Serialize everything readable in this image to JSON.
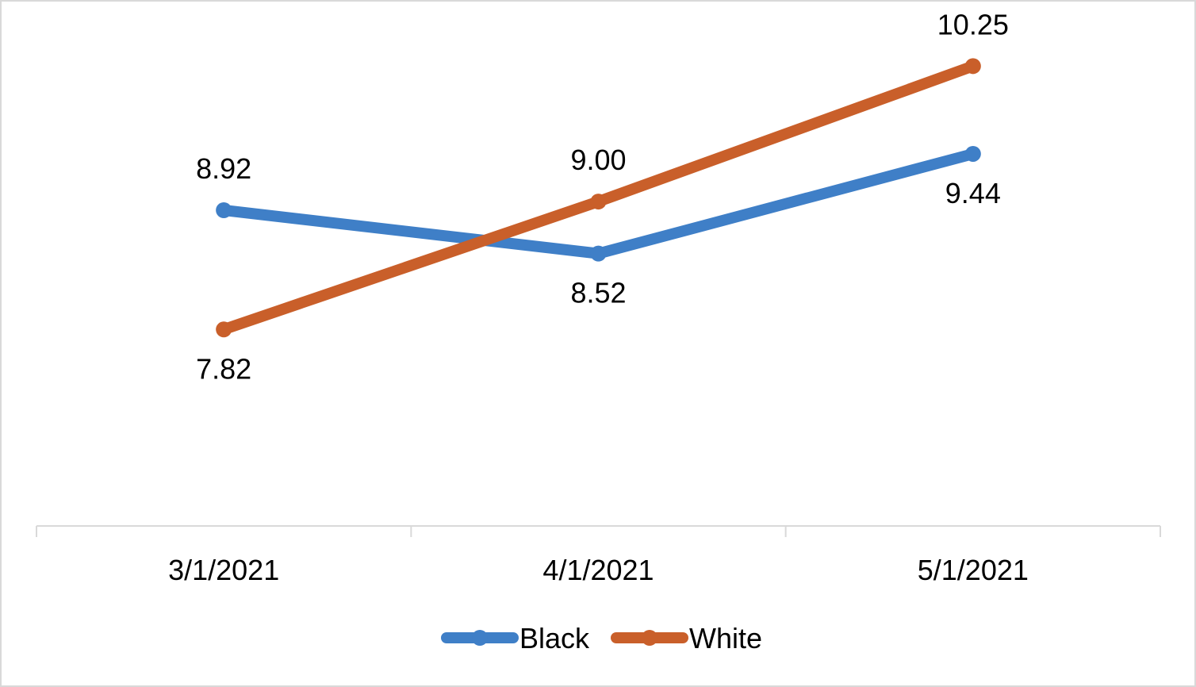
{
  "chart_data": {
    "type": "line",
    "categories": [
      "3/1/2021",
      "4/1/2021",
      "5/1/2021"
    ],
    "series": [
      {
        "name": "Black",
        "values": [
          8.92,
          8.52,
          9.44
        ],
        "color": "#3f7fc7"
      },
      {
        "name": "White",
        "values": [
          7.82,
          9.0,
          10.25
        ],
        "color": "#c95f2a"
      }
    ],
    "data_labels": [
      [
        "8.92",
        "8.52",
        "9.44"
      ],
      [
        "7.82",
        "9.00",
        "10.25"
      ]
    ],
    "title": "",
    "xlabel": "",
    "ylabel": "",
    "y_axis_visible": false,
    "grid": false,
    "legend_position": "bottom"
  }
}
